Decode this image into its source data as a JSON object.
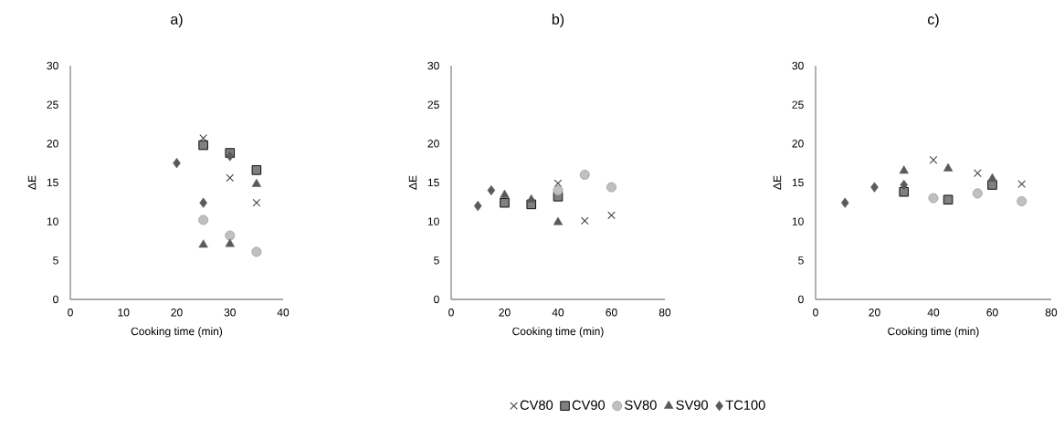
{
  "chart_data": [
    {
      "type": "scatter",
      "title": "a)",
      "xlabel": "Cooking time (min)",
      "ylabel": "ΔE",
      "xlim": [
        0,
        40
      ],
      "xticks": [
        0,
        10,
        20,
        30,
        40
      ],
      "ylim": [
        0,
        30
      ],
      "yticks": [
        0,
        5,
        10,
        15,
        20,
        25,
        30
      ],
      "grid": false,
      "legend": false,
      "series": [
        {
          "color": "#404040",
          "marker": "cross",
          "x": [
            25,
            30,
            35
          ],
          "values": [
            20.7,
            15.6,
            12.4
          ]
        },
        {
          "color": "#808080",
          "marker": "square",
          "x": [
            25,
            30,
            35
          ],
          "values": [
            19.8,
            18.8,
            16.6
          ]
        },
        {
          "color": "#c0c0c0",
          "marker": "circle",
          "x": [
            25,
            30,
            35
          ],
          "values": [
            10.2,
            8.2,
            6.1
          ]
        },
        {
          "color": "#5a5a5a",
          "marker": "triangle",
          "x": [
            25,
            30,
            35
          ],
          "values": [
            7.0,
            7.1,
            14.8
          ]
        },
        {
          "color": "#5a5a5a",
          "marker": "diamond",
          "x": [
            20,
            25,
            30
          ],
          "values": [
            17.5,
            12.4,
            18.4
          ]
        }
      ]
    },
    {
      "type": "scatter",
      "title": "b)",
      "xlabel": "Cooking time (min)",
      "ylabel": "ΔE",
      "xlim": [
        0,
        80
      ],
      "xticks": [
        0,
        20,
        40,
        60,
        80
      ],
      "ylim": [
        0,
        30
      ],
      "yticks": [
        0,
        5,
        10,
        15,
        20,
        25,
        30
      ],
      "grid": false,
      "legend": "bottom",
      "series": [
        {
          "name": "CV80",
          "color": "#404040",
          "marker": "cross",
          "x": [
            40,
            50,
            60
          ],
          "values": [
            14.9,
            10.1,
            10.8
          ]
        },
        {
          "name": "CV90",
          "color": "#808080",
          "marker": "square",
          "x": [
            20,
            30,
            40
          ],
          "values": [
            12.4,
            12.2,
            13.2
          ]
        },
        {
          "name": "SV80",
          "color": "#c0c0c0",
          "marker": "circle",
          "x": [
            40,
            50,
            60
          ],
          "values": [
            14.0,
            16.0,
            14.4
          ]
        },
        {
          "name": "SV90",
          "color": "#5a5a5a",
          "marker": "triangle",
          "x": [
            20,
            30,
            40
          ],
          "values": [
            13.4,
            12.8,
            9.9
          ]
        },
        {
          "name": "TC100",
          "color": "#5a5a5a",
          "marker": "diamond",
          "x": [
            10,
            15
          ],
          "values": [
            12.0,
            14.0
          ]
        }
      ]
    },
    {
      "type": "scatter",
      "title": "c)",
      "xlabel": "Cooking time (min)",
      "ylabel": "ΔE",
      "xlim": [
        0,
        80
      ],
      "xticks": [
        0,
        20,
        40,
        60,
        80
      ],
      "ylim": [
        0,
        30
      ],
      "yticks": [
        0,
        5,
        10,
        15,
        20,
        25,
        30
      ],
      "grid": false,
      "legend": false,
      "series": [
        {
          "color": "#404040",
          "marker": "cross",
          "x": [
            40,
            55,
            70
          ],
          "values": [
            17.9,
            16.2,
            14.8
          ]
        },
        {
          "color": "#808080",
          "marker": "square",
          "x": [
            30,
            45,
            60
          ],
          "values": [
            13.8,
            12.8,
            14.7
          ]
        },
        {
          "color": "#c0c0c0",
          "marker": "circle",
          "x": [
            40,
            55,
            70
          ],
          "values": [
            13.0,
            13.6,
            12.6
          ]
        },
        {
          "color": "#5a5a5a",
          "marker": "triangle",
          "x": [
            30,
            45,
            60
          ],
          "values": [
            16.5,
            16.8,
            15.5
          ]
        },
        {
          "color": "#5a5a5a",
          "marker": "diamond",
          "x": [
            10,
            20,
            30
          ],
          "values": [
            12.4,
            14.4,
            14.7
          ]
        }
      ]
    }
  ]
}
